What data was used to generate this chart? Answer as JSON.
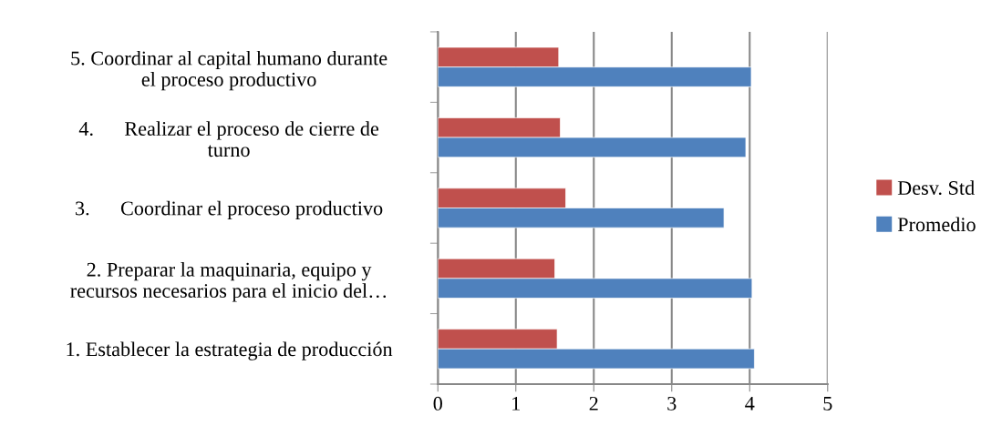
{
  "chart_data": {
    "type": "bar",
    "orientation": "horizontal",
    "categories": [
      "5. Coordinar al capital humano durante\nel proceso productivo",
      "4.      Realizar el proceso de cierre de\nturno",
      "3.      Coordinar el proceso productivo",
      "2. Preparar la maquinaria, equipo y\nrecursos necesarios para el inicio del…",
      "1. Establecer la estrategia de producción"
    ],
    "series": [
      {
        "name": "Desv. Std",
        "color": "#c0504d",
        "values": [
          1.55,
          1.57,
          1.64,
          1.5,
          1.53
        ]
      },
      {
        "name": "Promedio",
        "color": "#4f81bd",
        "values": [
          4.02,
          3.95,
          3.67,
          4.03,
          4.06
        ]
      }
    ],
    "xlim": [
      0,
      5
    ],
    "xticks": [
      0,
      1,
      2,
      3,
      4,
      5
    ],
    "grid": "x",
    "legend": "right"
  }
}
